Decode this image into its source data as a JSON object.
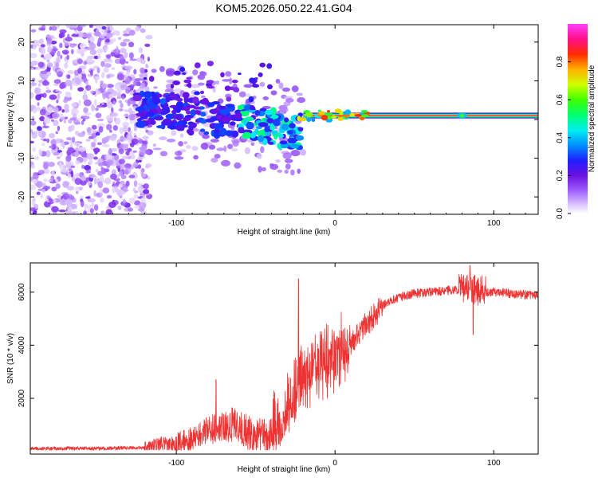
{
  "title": "KOM5.2026.050.22.41.G04",
  "chart_data": [
    {
      "type": "heatmap",
      "id": "spectrogram",
      "xlabel": "Height of straight line (km)",
      "ylabel": "Frequency (Hz)",
      "xlim": [
        -192,
        128
      ],
      "ylim": [
        -24.5,
        24.5
      ],
      "xticks": [
        -100,
        0,
        100
      ],
      "yticks": [
        -20,
        -10,
        0,
        10,
        20
      ],
      "colorbar": {
        "label": "Normalized spectral amplitude",
        "range": [
          0,
          1
        ],
        "ticks": [
          "0.0",
          "0.2",
          "0.4",
          "0.6",
          "0.8"
        ],
        "colors": [
          "#ffffff",
          "#e0ccff",
          "#b070ff",
          "#8a2be2",
          "#6a0dd8",
          "#3020ff",
          "#0070ff",
          "#00e5ff",
          "#00ff80",
          "#40ff00",
          "#e0ff00",
          "#ff9900",
          "#ff2020",
          "#ff1090",
          "#ff40ff"
        ]
      },
      "features": {
        "main_line_frequency_hz": 1,
        "line_amplitude_for_height_above_km": -20,
        "noise_region_below_km": -125,
        "blobs_range_km": [
          -125,
          -20
        ],
        "blob_line_slope_hz_per_km": 0.06,
        "bump_near_km": 80
      }
    },
    {
      "type": "line",
      "id": "snr",
      "xlabel": "Height of straight line (km)",
      "ylabel": "SNR (10 * v/v)",
      "xlim": [
        -192,
        128
      ],
      "ylim": [
        -100,
        7100
      ],
      "xticks": [
        -100,
        0,
        100
      ],
      "yticks": [
        2000,
        4000,
        6000
      ],
      "series": [
        {
          "name": "SNR",
          "color": "#ee3333",
          "envelope": {
            "x": [
              -192,
              -140,
              -120,
              -100,
              -90,
              -75,
              -65,
              -55,
              -45,
              -35,
              -28,
              -22,
              -15,
              -8,
              0,
              10,
              20,
              30,
              40,
              50,
              60,
              70,
              80,
              85,
              90,
              100,
              110,
              120,
              128
            ],
            "y": [
              100,
              120,
              150,
              300,
              500,
              900,
              1000,
              700,
              500,
              700,
              1400,
              2200,
              2800,
              3000,
              3200,
              4000,
              4800,
              5500,
              5800,
              5950,
              6000,
              6050,
              6100,
              6150,
              6050,
              6000,
              5950,
              5900,
              5850
            ]
          },
          "peaks": [
            {
              "x": -75,
              "y": 2700
            },
            {
              "x": -23,
              "y": 6500
            },
            {
              "x": 85,
              "y": 7000
            },
            {
              "x": 87,
              "y": 4400
            }
          ]
        }
      ]
    }
  ]
}
